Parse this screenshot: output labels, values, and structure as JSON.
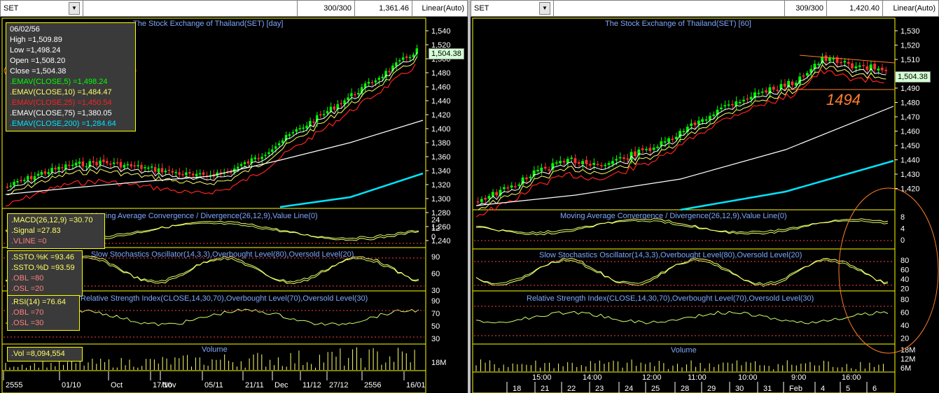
{
  "left": {
    "symbol": "SET",
    "count": "300/300",
    "last_value": "1,361.46",
    "scale": "Linear(Auto)",
    "main_title": "The Stock Exchange of Thailand(SET) [day]",
    "info": {
      "date": "06/02/56",
      "high": "High  =1,509.89",
      "low": "Low  =1,498.24",
      "open": "Open  =1,508.20",
      "close": "Close  =1,504.38",
      "ema5": ".EMAV(CLOSE,5)  =1,498.24",
      "ema10": ".EMAV(CLOSE,10)  =1,484.47",
      "ema25": ".EMAV(CLOSE,25)  =1,450.54",
      "ema75": ".EMAV(CLOSE,75)  =1,380.05",
      "ema200": ".EMAV(CLOSE,200)  =1,284.64"
    },
    "price_tag": "1,504.38",
    "y_axis": [
      "1,540",
      "1,520",
      "1,500",
      "1,480",
      "1,460",
      "1,440",
      "1,420",
      "1,400",
      "1,380",
      "1,360",
      "1,340",
      "1,320",
      "1,300",
      "1,280",
      "1,260",
      "1,240"
    ],
    "macd": {
      "title": "Moving Average Convergence / Divergence(26,12,9),Value Line(0)",
      "macd": ".MACD(26,12,9)  =30.70",
      "signal": ".Signal  =27.83",
      "vline": ".VLINE  =0",
      "axis": [
        "24",
        "12",
        "0"
      ]
    },
    "stoch": {
      "title": "Slow Stochastics Oscillator(14,3,3),Overbought Level(80),Oversold Level(20)",
      "k": ".SSTO.%K  =93.46",
      "d": ".SSTO.%D  =93.59",
      "obl": ".OBL  =80",
      "osl": ".OSL  =20",
      "axis": [
        "90",
        "60",
        "30"
      ]
    },
    "rsi": {
      "title": "Relative Strength Index(CLOSE,14,30,70),Overbought Level(70),Oversold Level(30)",
      "rsi": ".RSI(14)  =76.64",
      "obl": ".OBL  =70",
      "osl": ".OSL  =30",
      "axis": [
        "90",
        "70",
        "50",
        "30"
      ]
    },
    "volume": {
      "title": "Volume",
      "vol": ".Vol  =8,094,554",
      "axis": [
        "18M"
      ]
    },
    "x_axis": [
      "2555",
      "01/10",
      "Oct",
      "17/10",
      "Nov",
      "05/11",
      "21/11",
      "Dec",
      "11/12",
      "27/12",
      "2556",
      "16/01"
    ]
  },
  "right": {
    "symbol": "SET",
    "count": "309/300",
    "last_value": "1,420.40",
    "scale": "Linear(Auto)",
    "main_title": "The Stock Exchange of Thailand(SET) [60]",
    "price_tag": "1,504.38",
    "annotation": "1494",
    "y_axis": [
      "1,530",
      "1,520",
      "1,510",
      "1,500",
      "1,490",
      "1,480",
      "1,470",
      "1,460",
      "1,450",
      "1,440",
      "1,430",
      "1,420"
    ],
    "macd": {
      "title": "Moving Average Convergence / Divergence(26,12,9),Value Line(0)",
      "axis": [
        "8",
        "4",
        "0"
      ]
    },
    "stoch": {
      "title": "Slow Stochastics Oscillator(14,3,3),Overbought Level(80),Oversold Level(20)",
      "axis": [
        "80",
        "60",
        "40",
        "20"
      ]
    },
    "rsi": {
      "title": "Relative Strength Index(CLOSE,14,30,70),Overbought Level(70),Oversold Level(30)",
      "axis": [
        "80",
        "60",
        "40",
        "20"
      ]
    },
    "volume": {
      "title": "Volume",
      "axis": [
        "18M",
        "12M",
        "6M"
      ]
    },
    "x_axis_top": [
      "15:00",
      "14:00",
      "12:00",
      "11:00",
      "10:00",
      "9:00",
      "16:00"
    ],
    "x_axis_bottom": [
      "18",
      "21",
      "22",
      "23",
      "24",
      "25",
      "28",
      "29",
      "30",
      "31",
      "Feb",
      "4",
      "5",
      "6"
    ]
  },
  "colors": {
    "up": "#00ff00",
    "down": "#ff3030",
    "ema5": "#ffffff",
    "ema10": "#ffff66",
    "ema25": "#ff2020",
    "ema75": "#ffffff",
    "ema200": "#00e5ff",
    "panel_border": "#ffff00",
    "ind_line": "#ccff66",
    "highlight": "#ff7f27"
  }
}
